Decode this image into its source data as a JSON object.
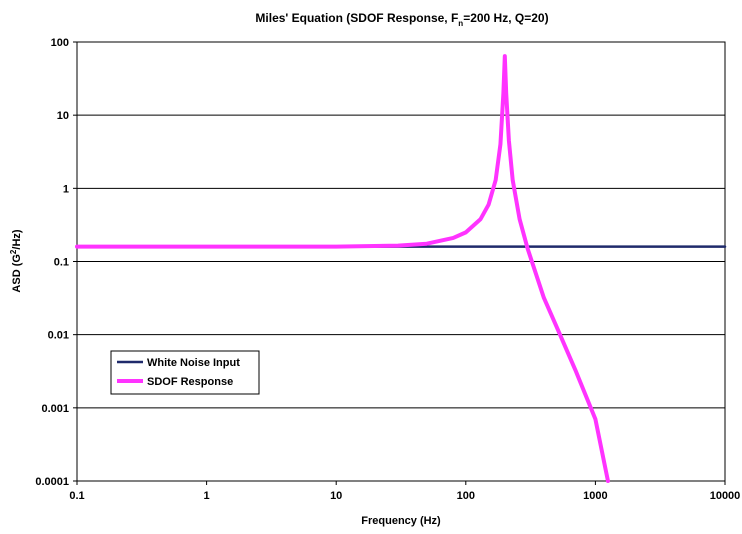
{
  "chart_data": {
    "type": "line",
    "title_main": "Miles' Equation (SDOF Response, F",
    "title_sub": "n",
    "title_rest": "=200 Hz, Q=20)",
    "xlabel": "Frequency (Hz)",
    "ylabel_pre": "ASD (G",
    "ylabel_sup": "2",
    "ylabel_post": "/Hz)",
    "x_scale": "log",
    "y_scale": "log",
    "xlim": [
      0.1,
      10000
    ],
    "ylim": [
      0.0001,
      100
    ],
    "x_tick_labels": [
      "0.1",
      "1",
      "10",
      "100",
      "1000",
      "10000"
    ],
    "y_tick_labels": [
      "100",
      "10",
      "1",
      "0.1",
      "0.01",
      "0.001",
      "0.0001"
    ],
    "grid": "horizontal",
    "legend_position": "bottom-left",
    "series": [
      {
        "name": "White Noise Input",
        "color": "#1f2a6b",
        "x": [
          0.1,
          1,
          10,
          100,
          1000,
          10000
        ],
        "y": [
          0.16,
          0.16,
          0.16,
          0.16,
          0.16,
          0.16
        ]
      },
      {
        "name": "SDOF Response",
        "color": "#ff33ff",
        "x": [
          0.1,
          1,
          10,
          30,
          50,
          80,
          100,
          130,
          150,
          170,
          185,
          195,
          200,
          205,
          215,
          230,
          260,
          300,
          400,
          500,
          700,
          1000,
          1250
        ],
        "y": [
          0.16,
          0.16,
          0.16,
          0.165,
          0.175,
          0.21,
          0.25,
          0.38,
          0.6,
          1.3,
          4.0,
          20,
          64,
          20,
          4.5,
          1.3,
          0.38,
          0.15,
          0.032,
          0.013,
          0.0033,
          0.0007,
          0.0001
        ]
      }
    ]
  }
}
